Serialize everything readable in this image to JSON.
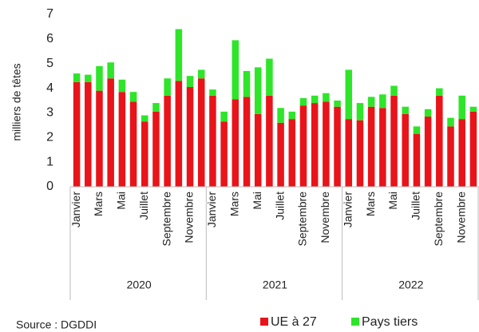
{
  "chart_data": {
    "type": "stacked_bar",
    "y_label": "milliers de têtes",
    "categories": [
      "Janvier",
      null,
      "Mars",
      null,
      "Mai",
      null,
      "Juillet",
      null,
      "Septembre",
      null,
      "Novembre",
      null,
      "Janvier",
      null,
      "Mars",
      null,
      "Mai",
      null,
      "Juillet",
      null,
      "Septembre",
      null,
      "Novembre",
      null,
      "Janvier",
      null,
      "Mars",
      null,
      "Mai",
      null,
      "Juillet",
      null,
      "Septembre",
      null,
      "Novembre",
      null
    ],
    "years": [
      "2020",
      "2021",
      "2022"
    ],
    "series": [
      {
        "name": "UE à 27",
        "color": "#e8141a",
        "values": [
          4.25,
          4.25,
          3.9,
          4.4,
          3.85,
          3.45,
          2.65,
          3.05,
          3.7,
          4.3,
          4.05,
          4.4,
          3.7,
          2.65,
          3.55,
          3.65,
          2.95,
          3.7,
          2.6,
          2.75,
          3.3,
          3.4,
          3.45,
          3.25,
          2.75,
          2.7,
          3.25,
          3.2,
          3.7,
          2.95,
          2.15,
          2.85,
          3.7,
          2.45,
          2.75,
          3.05
        ]
      },
      {
        "name": "Pays tiers",
        "color": "#2ee52a",
        "values": [
          0.35,
          0.3,
          1.0,
          0.65,
          0.5,
          0.4,
          0.25,
          0.35,
          0.7,
          2.1,
          0.45,
          0.35,
          0.25,
          0.4,
          2.4,
          1.05,
          1.9,
          1.5,
          0.6,
          0.3,
          0.3,
          0.3,
          0.35,
          0.25,
          2.0,
          0.7,
          0.4,
          0.55,
          0.4,
          0.3,
          0.3,
          0.3,
          0.3,
          0.35,
          0.95,
          0.2
        ]
      }
    ],
    "ylim": [
      0,
      7
    ],
    "yticks": [
      0,
      1,
      2,
      3,
      4,
      5,
      6,
      7
    ],
    "source": "Source : DGDDI"
  }
}
